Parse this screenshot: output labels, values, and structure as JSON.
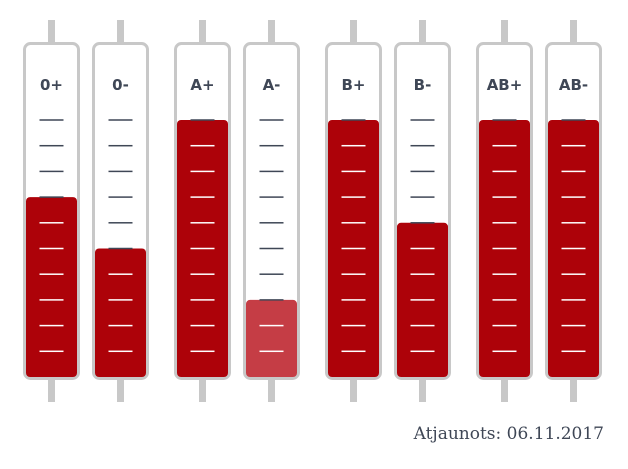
{
  "chart_data": {
    "type": "bar",
    "categories": [
      "0+",
      "0-",
      "A+",
      "A-",
      "B+",
      "B-",
      "AB+",
      "AB-"
    ],
    "levels": [
      7,
      5,
      10,
      3,
      10,
      6,
      10,
      10
    ],
    "level_max": 10,
    "level_unit": "marks of 10",
    "colors": {
      "fill": "#ad0209",
      "fill_low": "#c53d45",
      "tube_border": "#c8c8c8",
      "tick_empty": "#3f4756",
      "tick_filled": "#ffffff"
    }
  },
  "footer": {
    "updated_label": "Atjaunots: 06.11.2017"
  }
}
